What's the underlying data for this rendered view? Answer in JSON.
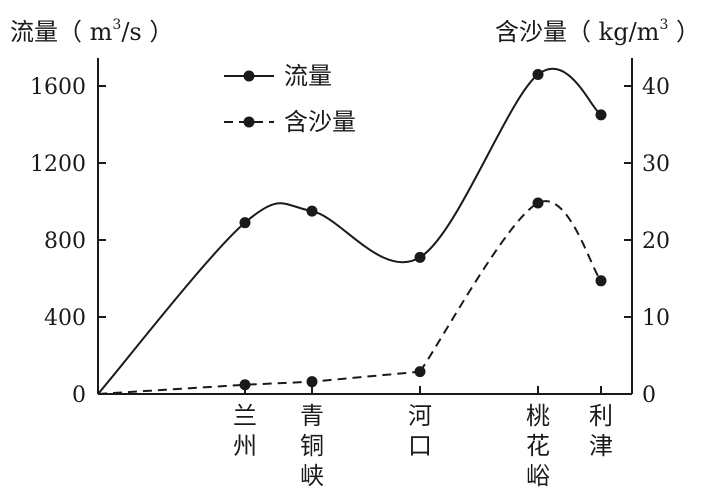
{
  "chart_data": {
    "type": "line",
    "y_left": {
      "label": "流量（m³/s）",
      "label_prefix": "流量（ m",
      "label_sup": "3",
      "label_suffix": "/s ）",
      "range": [
        0,
        1600
      ],
      "ticks": [
        0,
        400,
        800,
        1200,
        1600
      ]
    },
    "y_right": {
      "label": "含沙量（kg/m³）",
      "label_prefix": "含沙量（ kg/m",
      "label_sup": "3",
      "label_suffix": " ）",
      "range": [
        0,
        40
      ],
      "ticks": [
        0,
        10,
        20,
        30,
        40
      ]
    },
    "categories": [
      {
        "name": "兰州",
        "chars": [
          "兰",
          "州"
        ]
      },
      {
        "name": "青铜峡",
        "chars": [
          "青",
          "铜",
          "峡"
        ]
      },
      {
        "name": "河口",
        "chars": [
          "河",
          "口"
        ]
      },
      {
        "name": "桃花峪",
        "chars": [
          "桃",
          "花",
          "峪"
        ]
      },
      {
        "name": "利津",
        "chars": [
          "利",
          "津"
        ]
      }
    ],
    "series": [
      {
        "name": "流量",
        "axis": "left",
        "style": "solid",
        "values": [
          890,
          950,
          710,
          1660,
          1450
        ]
      },
      {
        "name": "含沙量",
        "axis": "right",
        "style": "dashed",
        "values": [
          1.2,
          1.6,
          2.9,
          24.8,
          14.7
        ]
      }
    ],
    "legend_position": "top-center",
    "grid": false
  }
}
